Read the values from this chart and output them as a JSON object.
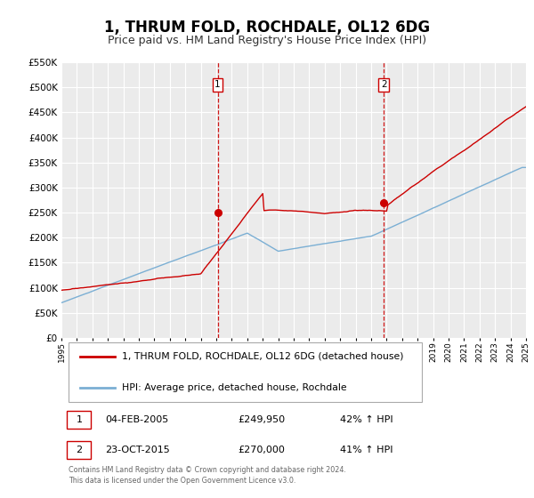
{
  "title": "1, THRUM FOLD, ROCHDALE, OL12 6DG",
  "subtitle": "Price paid vs. HM Land Registry's House Price Index (HPI)",
  "title_fontsize": 12,
  "subtitle_fontsize": 9,
  "background_color": "#ffffff",
  "plot_bg_color": "#ebebeb",
  "grid_color": "#ffffff",
  "red_line_color": "#cc0000",
  "blue_line_color": "#7bafd4",
  "dashed_vline_color": "#cc0000",
  "marker_color": "#cc0000",
  "ylim": [
    0,
    550000
  ],
  "yticks": [
    0,
    50000,
    100000,
    150000,
    200000,
    250000,
    300000,
    350000,
    400000,
    450000,
    500000,
    550000
  ],
  "sale1_x": 2005.09,
  "sale1_y": 249950,
  "sale1_label": "1",
  "sale1_date": "04-FEB-2005",
  "sale1_price": "£249,950",
  "sale1_hpi": "42% ↑ HPI",
  "sale2_x": 2015.81,
  "sale2_y": 270000,
  "sale2_label": "2",
  "sale2_date": "23-OCT-2015",
  "sale2_price": "£270,000",
  "sale2_hpi": "41% ↑ HPI",
  "legend_label_red": "1, THRUM FOLD, ROCHDALE, OL12 6DG (detached house)",
  "legend_label_blue": "HPI: Average price, detached house, Rochdale",
  "footer_text": "Contains HM Land Registry data © Crown copyright and database right 2024.\nThis data is licensed under the Open Government Licence v3.0.",
  "xmin": 1995,
  "xmax": 2025
}
